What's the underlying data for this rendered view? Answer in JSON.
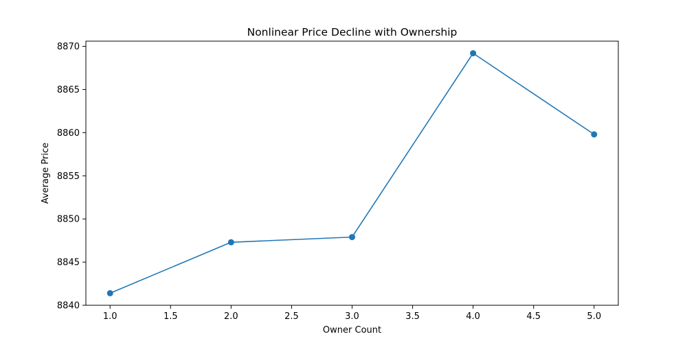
{
  "chart_data": {
    "type": "line",
    "title": "Nonlinear Price Decline with Ownership",
    "xlabel": "Owner Count",
    "ylabel": "Average Price",
    "x": [
      1.0,
      2.0,
      3.0,
      4.0,
      5.0
    ],
    "series": [
      {
        "values": [
          8841.4,
          8847.3,
          8847.9,
          8869.2,
          8859.8
        ],
        "color": "#1f77b4",
        "marker": "circle"
      }
    ],
    "xlim": [
      0.8,
      5.2
    ],
    "ylim": [
      8840,
      8870.6
    ],
    "xticks": [
      "1.0",
      "1.5",
      "2.0",
      "2.5",
      "3.0",
      "3.5",
      "4.0",
      "4.5",
      "5.0"
    ],
    "yticks": [
      "8840",
      "8845",
      "8850",
      "8855",
      "8860",
      "8865",
      "8870"
    ],
    "grid": false,
    "legend": "none"
  }
}
